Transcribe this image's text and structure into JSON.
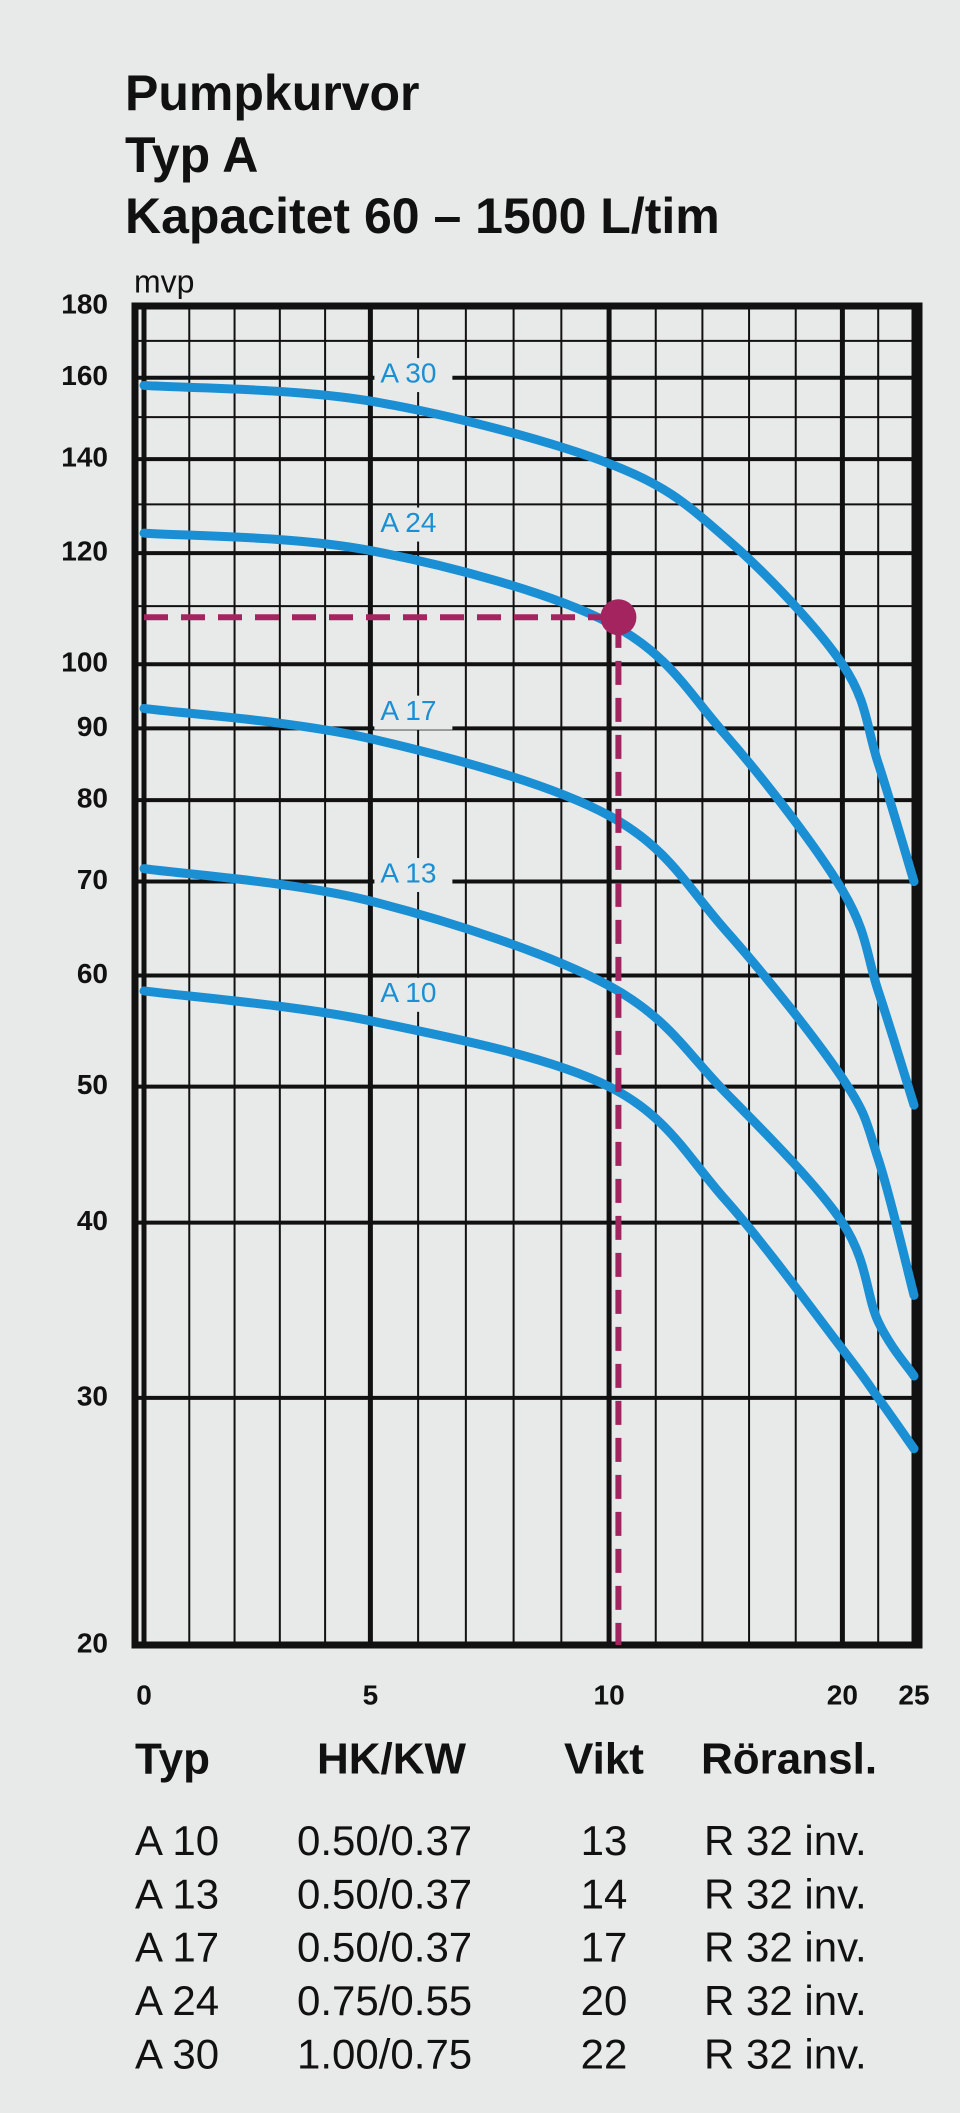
{
  "chart_data": {
    "type": "line",
    "title_lines": [
      "Pumpkurvor",
      "Typ A",
      "Kapacitet 60 – 1500 L/tim"
    ],
    "ylabel": "mvp",
    "log_y": true,
    "ylim": [
      20,
      180
    ],
    "yticks": [
      20,
      30,
      40,
      50,
      60,
      70,
      80,
      90,
      100,
      120,
      140,
      160,
      180
    ],
    "y_minor_ticks": [
      110,
      130,
      150,
      170
    ],
    "xlim": [
      0,
      25
    ],
    "xticks": [
      0,
      5,
      10,
      20,
      25
    ],
    "x_minor_ticks": [
      1,
      2,
      3,
      4,
      6,
      7,
      8,
      9,
      12,
      14,
      16,
      18,
      22.5
    ],
    "grid": true,
    "x": [
      0,
      5,
      10,
      15,
      20,
      22.5,
      25
    ],
    "series": [
      {
        "name": "A 30",
        "color": "#1b8fd4",
        "values": [
          158,
          154,
          139,
          123,
          100,
          85,
          70
        ]
      },
      {
        "name": "A 24",
        "color": "#1b8fd4",
        "values": [
          124,
          120.5,
          107,
          89,
          69,
          58.5,
          48.5
        ]
      },
      {
        "name": "A 17",
        "color": "#1b8fd4",
        "values": [
          93,
          88.5,
          78,
          64.6,
          50.7,
          44.4,
          35.5
        ]
      },
      {
        "name": "A 13",
        "color": "#1b8fd4",
        "values": [
          71.5,
          67.8,
          59,
          49.5,
          40,
          34,
          31.1
        ]
      },
      {
        "name": "A 10",
        "color": "#1b8fd4",
        "values": [
          58.5,
          55.7,
          50,
          41.5,
          32.5,
          30,
          27.6
        ]
      }
    ],
    "operating_point": {
      "x": 10.4,
      "y": 108,
      "color": "#a3245f"
    }
  },
  "table": {
    "header": [
      "Typ",
      "HK/KW",
      "Vikt",
      "Röransl."
    ],
    "rows": [
      [
        "A 10",
        "0.50/0.37",
        "13",
        "R 32 inv."
      ],
      [
        "A 13",
        "0.50/0.37",
        "14",
        "R 32 inv."
      ],
      [
        "A 17",
        "0.50/0.37",
        "17",
        "R 32 inv."
      ],
      [
        "A 24",
        "0.75/0.55",
        "20",
        "R 32 inv."
      ],
      [
        "A 30",
        "1.00/0.75",
        "22",
        "R 32 inv."
      ]
    ]
  }
}
